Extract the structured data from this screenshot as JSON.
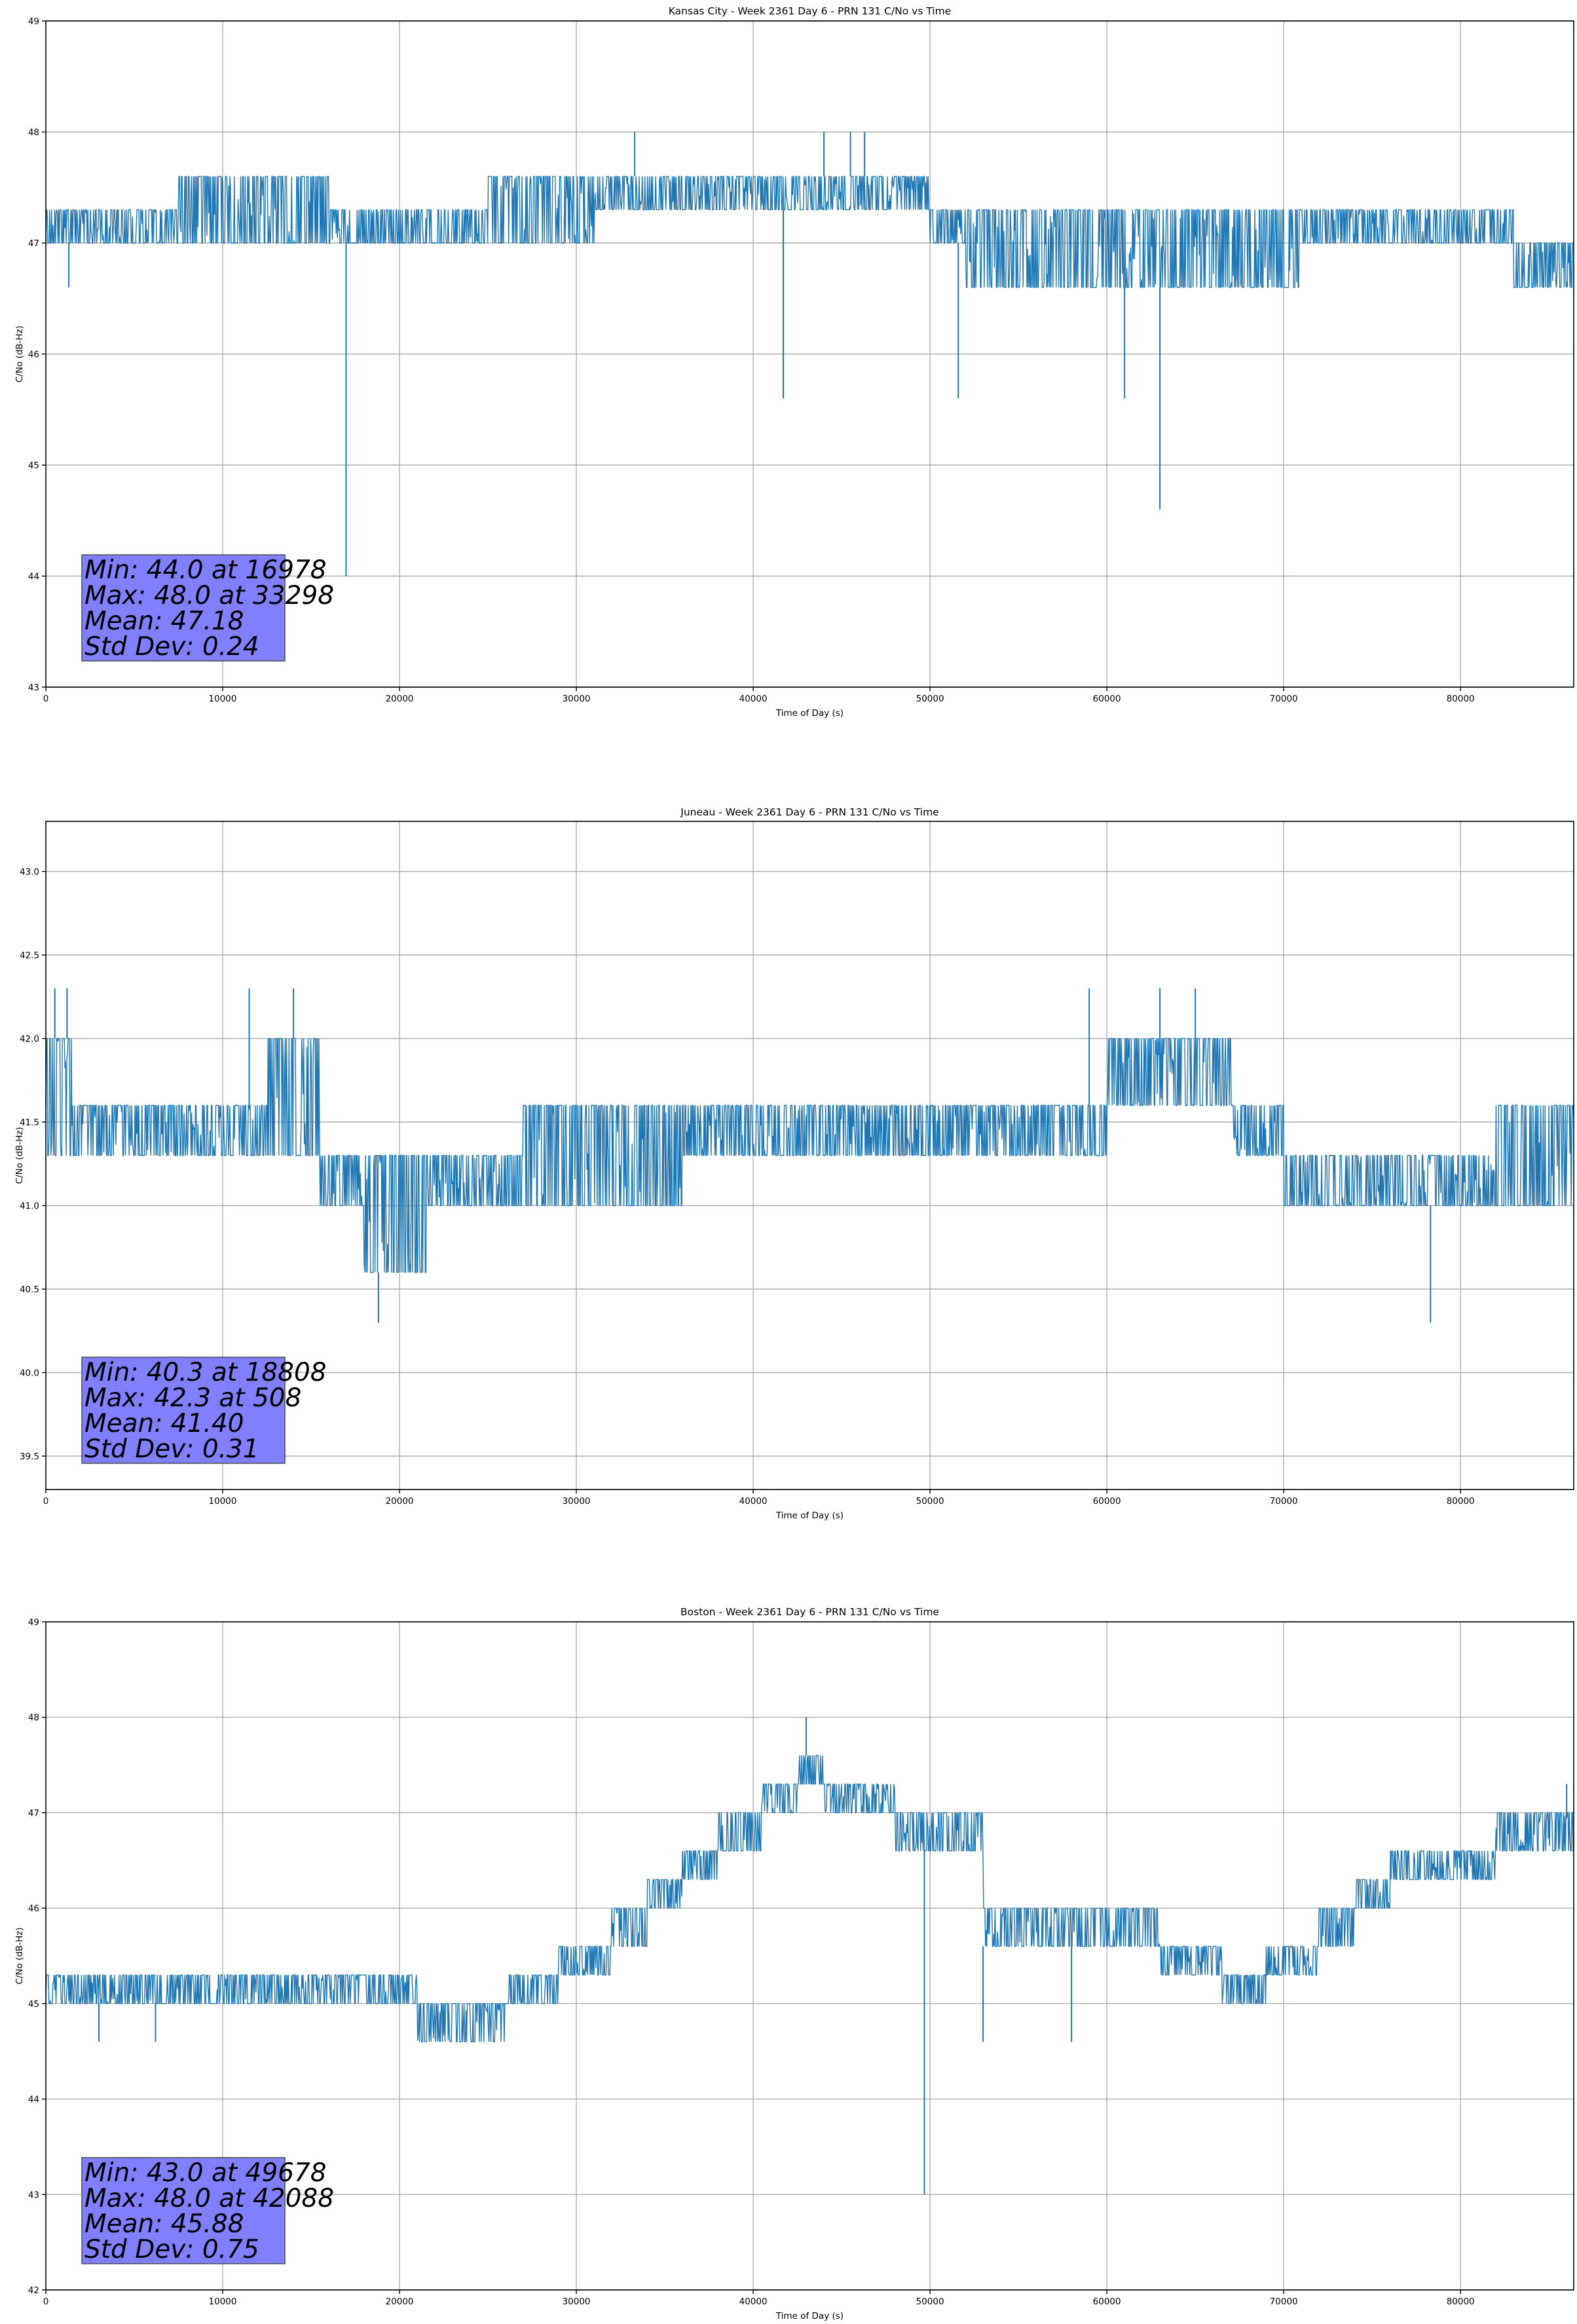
{
  "colors": {
    "line": "#1f77b4",
    "stats_box": "#8080ff",
    "stats_border": "#4a4a4a"
  },
  "chart_data": [
    {
      "type": "line",
      "title": "Kansas City - Week 2361 Day 6 - PRN 131 C/No vs Time",
      "xlabel": "Time of Day (s)",
      "ylabel": "C/No (dB-Hz)",
      "xlim": [
        0,
        86400
      ],
      "ylim": [
        43,
        49
      ],
      "xticks": [
        0,
        10000,
        20000,
        30000,
        40000,
        50000,
        60000,
        70000,
        80000
      ],
      "yticks": [
        43,
        44,
        45,
        46,
        47,
        48,
        49
      ],
      "ytick_labels": [
        "43",
        "44",
        "45",
        "46",
        "47",
        "48",
        "49"
      ],
      "grid": true,
      "stats": {
        "lines": [
          "Min: 44.0 at 16978",
          "Max: 48.0 at 33298",
          "Mean: 47.18",
          "Std Dev: 0.24"
        ]
      },
      "band": [
        [
          0,
          47.0,
          47.3
        ],
        [
          7500,
          47.0,
          47.6
        ],
        [
          16000,
          47.0,
          47.3
        ],
        [
          25000,
          47.0,
          47.6
        ],
        [
          31000,
          47.3,
          47.6
        ],
        [
          50000,
          47.0,
          47.3
        ],
        [
          52000,
          46.6,
          47.3
        ],
        [
          71000,
          47.0,
          47.3
        ],
        [
          83000,
          46.6,
          47.0
        ],
        [
          86400,
          46.6,
          47.0
        ]
      ],
      "spikes": [
        [
          1300,
          46.6
        ],
        [
          16978,
          44.0
        ],
        [
          33298,
          48.0
        ],
        [
          41700,
          45.6
        ],
        [
          44000,
          48.0
        ],
        [
          45500,
          48.0
        ],
        [
          46300,
          48.0
        ],
        [
          51600,
          45.6
        ],
        [
          61000,
          45.6
        ],
        [
          63000,
          44.6
        ]
      ]
    },
    {
      "type": "line",
      "title": "Juneau - Week 2361 Day 6 - PRN 131 C/No vs Time",
      "xlabel": "Time of Day (s)",
      "ylabel": "C/No (dB-Hz)",
      "xlim": [
        0,
        86400
      ],
      "ylim": [
        39.3,
        43.3
      ],
      "xticks": [
        0,
        10000,
        20000,
        30000,
        40000,
        50000,
        60000,
        70000,
        80000
      ],
      "yticks": [
        39.5,
        40.0,
        40.5,
        41.0,
        41.5,
        42.0,
        42.5,
        43.0
      ],
      "ytick_labels": [
        "39.5",
        "40.0",
        "40.5",
        "41.0",
        "41.5",
        "42.0",
        "42.5",
        "43.0"
      ],
      "grid": true,
      "stats": {
        "lines": [
          "Min: 40.3 at 18808",
          "Max: 42.3 at 508",
          "Mean: 41.40",
          "Std Dev: 0.31"
        ]
      },
      "band": [
        [
          0,
          41.3,
          42.0
        ],
        [
          1500,
          41.3,
          41.6
        ],
        [
          12500,
          41.3,
          42.0
        ],
        [
          15500,
          41.0,
          41.3
        ],
        [
          18000,
          40.6,
          41.3
        ],
        [
          21500,
          41.0,
          41.3
        ],
        [
          27000,
          41.0,
          41.6
        ],
        [
          36000,
          41.3,
          41.6
        ],
        [
          56000,
          41.3,
          41.6
        ],
        [
          60000,
          41.6,
          42.0
        ],
        [
          67000,
          41.3,
          41.6
        ],
        [
          70000,
          41.0,
          41.3
        ],
        [
          82000,
          41.0,
          41.6
        ],
        [
          86400,
          41.0,
          41.6
        ]
      ],
      "spikes": [
        [
          508,
          42.3
        ],
        [
          1200,
          42.3
        ],
        [
          11500,
          42.3
        ],
        [
          14000,
          42.3
        ],
        [
          18808,
          40.3
        ],
        [
          59000,
          42.3
        ],
        [
          63000,
          42.3
        ],
        [
          65000,
          42.3
        ],
        [
          78300,
          40.3
        ]
      ]
    },
    {
      "type": "line",
      "title": "Boston - Week 2361 Day 6 - PRN 131 C/No vs Time",
      "xlabel": "Time of Day (s)",
      "ylabel": "C/No (dB-Hz)",
      "xlim": [
        0,
        86400
      ],
      "ylim": [
        42,
        49
      ],
      "xticks": [
        0,
        10000,
        20000,
        30000,
        40000,
        50000,
        60000,
        70000,
        80000
      ],
      "yticks": [
        42,
        43,
        44,
        45,
        46,
        47,
        48,
        49
      ],
      "ytick_labels": [
        "42",
        "43",
        "44",
        "45",
        "46",
        "47",
        "48",
        "49"
      ],
      "grid": true,
      "stats": {
        "lines": [
          "Min: 43.0 at 49678",
          "Max: 48.0 at 42088",
          "Mean: 45.88",
          "Std Dev: 0.75"
        ]
      },
      "band": [
        [
          0,
          45.0,
          45.3
        ],
        [
          15500,
          45.0,
          45.3
        ],
        [
          21000,
          44.6,
          45.0
        ],
        [
          26000,
          45.0,
          45.3
        ],
        [
          29000,
          45.3,
          45.6
        ],
        [
          32000,
          45.6,
          46.0
        ],
        [
          34000,
          46.0,
          46.3
        ],
        [
          36000,
          46.3,
          46.6
        ],
        [
          38000,
          46.6,
          47.0
        ],
        [
          40500,
          47.0,
          47.3
        ],
        [
          42500,
          47.3,
          47.6
        ],
        [
          44000,
          47.0,
          47.3
        ],
        [
          48000,
          46.6,
          47.0
        ],
        [
          53000,
          45.6,
          46.0
        ],
        [
          58000,
          45.6,
          46.0
        ],
        [
          63000,
          45.3,
          45.6
        ],
        [
          66500,
          45.0,
          45.3
        ],
        [
          69000,
          45.3,
          45.6
        ],
        [
          72000,
          45.6,
          46.0
        ],
        [
          74000,
          46.0,
          46.3
        ],
        [
          76000,
          46.3,
          46.6
        ],
        [
          82000,
          46.6,
          47.0
        ],
        [
          86400,
          46.6,
          47.0
        ]
      ],
      "spikes": [
        [
          3000,
          44.6
        ],
        [
          6200,
          44.6
        ],
        [
          43000,
          48.0
        ],
        [
          49678,
          43.0
        ],
        [
          53000,
          44.6
        ],
        [
          58000,
          44.6
        ],
        [
          86000,
          47.3
        ]
      ]
    }
  ]
}
